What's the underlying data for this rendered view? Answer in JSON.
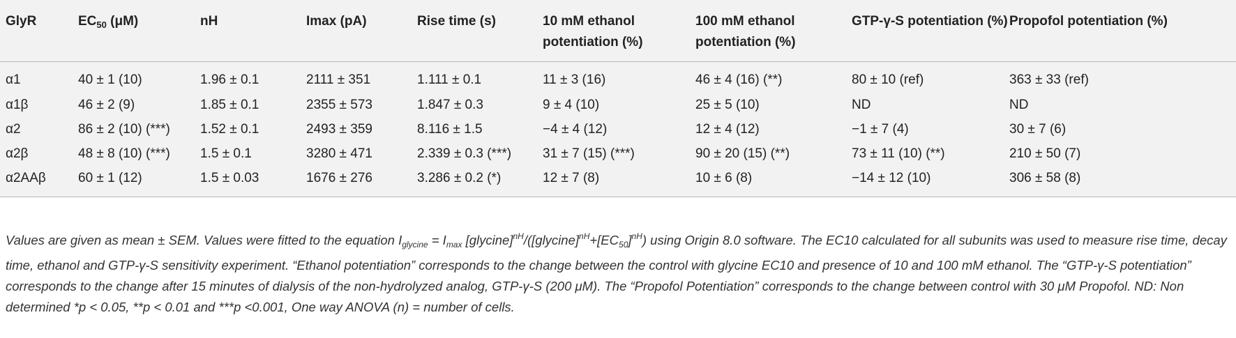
{
  "table": {
    "headers": [
      "GlyR",
      "Rise time (s)",
      "10 mM ethanol potentiation (%)",
      "100 mM ethanol potentiation (%)",
      "GTP-γ-S potentiation (%)",
      "Propofol potentiation (%)"
    ],
    "header_ec50": {
      "prefix": "EC",
      "sub": "50",
      "suffix": " (μM)"
    },
    "header_nh": "nH",
    "header_imax": "Imax (pA)",
    "rows": [
      {
        "glyr": "α1",
        "ec50": "40 ± 1 (10)",
        "nh": "1.96 ± 0.1",
        "imax": "2111 ± 351",
        "rise": "1.111 ± 0.1",
        "eth10": "11 ± 3 (16)",
        "eth100": "46 ± 4 (16) (**)",
        "gtp": "80 ± 10 (ref)",
        "propofol": "363 ± 33 (ref)"
      },
      {
        "glyr": "α1β",
        "ec50": "46 ± 2 (9)",
        "nh": "1.85 ± 0.1",
        "imax": "2355 ± 573",
        "rise": "1.847 ± 0.3",
        "eth10": "9 ± 4 (10)",
        "eth100": "25 ± 5 (10)",
        "gtp": "ND",
        "propofol": "ND"
      },
      {
        "glyr": "α2",
        "ec50": "86 ± 2 (10) (***)",
        "nh": "1.52 ± 0.1",
        "imax": "2493 ± 359",
        "rise": "8.116 ± 1.5",
        "eth10": "−4 ± 4 (12)",
        "eth100": "12 ± 4 (12)",
        "gtp": "−1 ± 7 (4)",
        "propofol": "30 ± 7 (6)"
      },
      {
        "glyr": "α2β",
        "ec50": "48 ± 8 (10) (***)",
        "nh": "1.5 ± 0.1",
        "imax": "3280 ± 471",
        "rise": "2.339 ± 0.3 (***)",
        "eth10": "31 ± 7 (15) (***)",
        "eth100": "90 ± 20 (15) (**)",
        "gtp": "73 ± 11 (10) (**)",
        "propofol": "210 ± 50 (7)"
      },
      {
        "glyr": "α2AAβ",
        "ec50": "60 ± 1 (12)",
        "nh": "1.5 ± 0.03",
        "imax": "1676 ± 276",
        "rise": "3.286 ± 0.2 (*)",
        "eth10": "12 ± 7 (8)",
        "eth100": "10 ± 6 (8)",
        "gtp": "−14 ± 12 (10)",
        "propofol": "306 ± 58 (8)"
      }
    ]
  },
  "footnote": {
    "s1": "Values are given as mean ± SEM. Values were fitted to the equation ",
    "i_letter": "I",
    "i_sub_glycine": "glycine",
    "s2": " = ",
    "i_max": "I",
    "i_sub_max": "max",
    "s3": " [glycine]",
    "sup1": "nH",
    "s4": "/([glycine]",
    "sup2": "nH",
    "s5": "+[EC",
    "sub_ec": "50",
    "s6": "]",
    "sup3": "nH",
    "s7": ") using Origin 8.0 software. The EC10 calculated for all subunits was used to measure rise time, decay time, ethanol and GTP-γ-S sensitivity experiment. “Ethanol potentiation” corresponds to the change between the control with glycine EC10 and presence of 10 and 100 mM ethanol. The “GTP-γ-S potentiation” corresponds to the change after 15 minutes of dialysis of the non-hydrolyzed analog, GTP-γ-S (200 μM). The “Propofol Potentiation” corresponds to the change between control with 30 μM Propofol. ND: Non determined *p < 0.05, **p < 0.01 and ***p <0.001, One way ANOVA (n) = number of cells."
  }
}
